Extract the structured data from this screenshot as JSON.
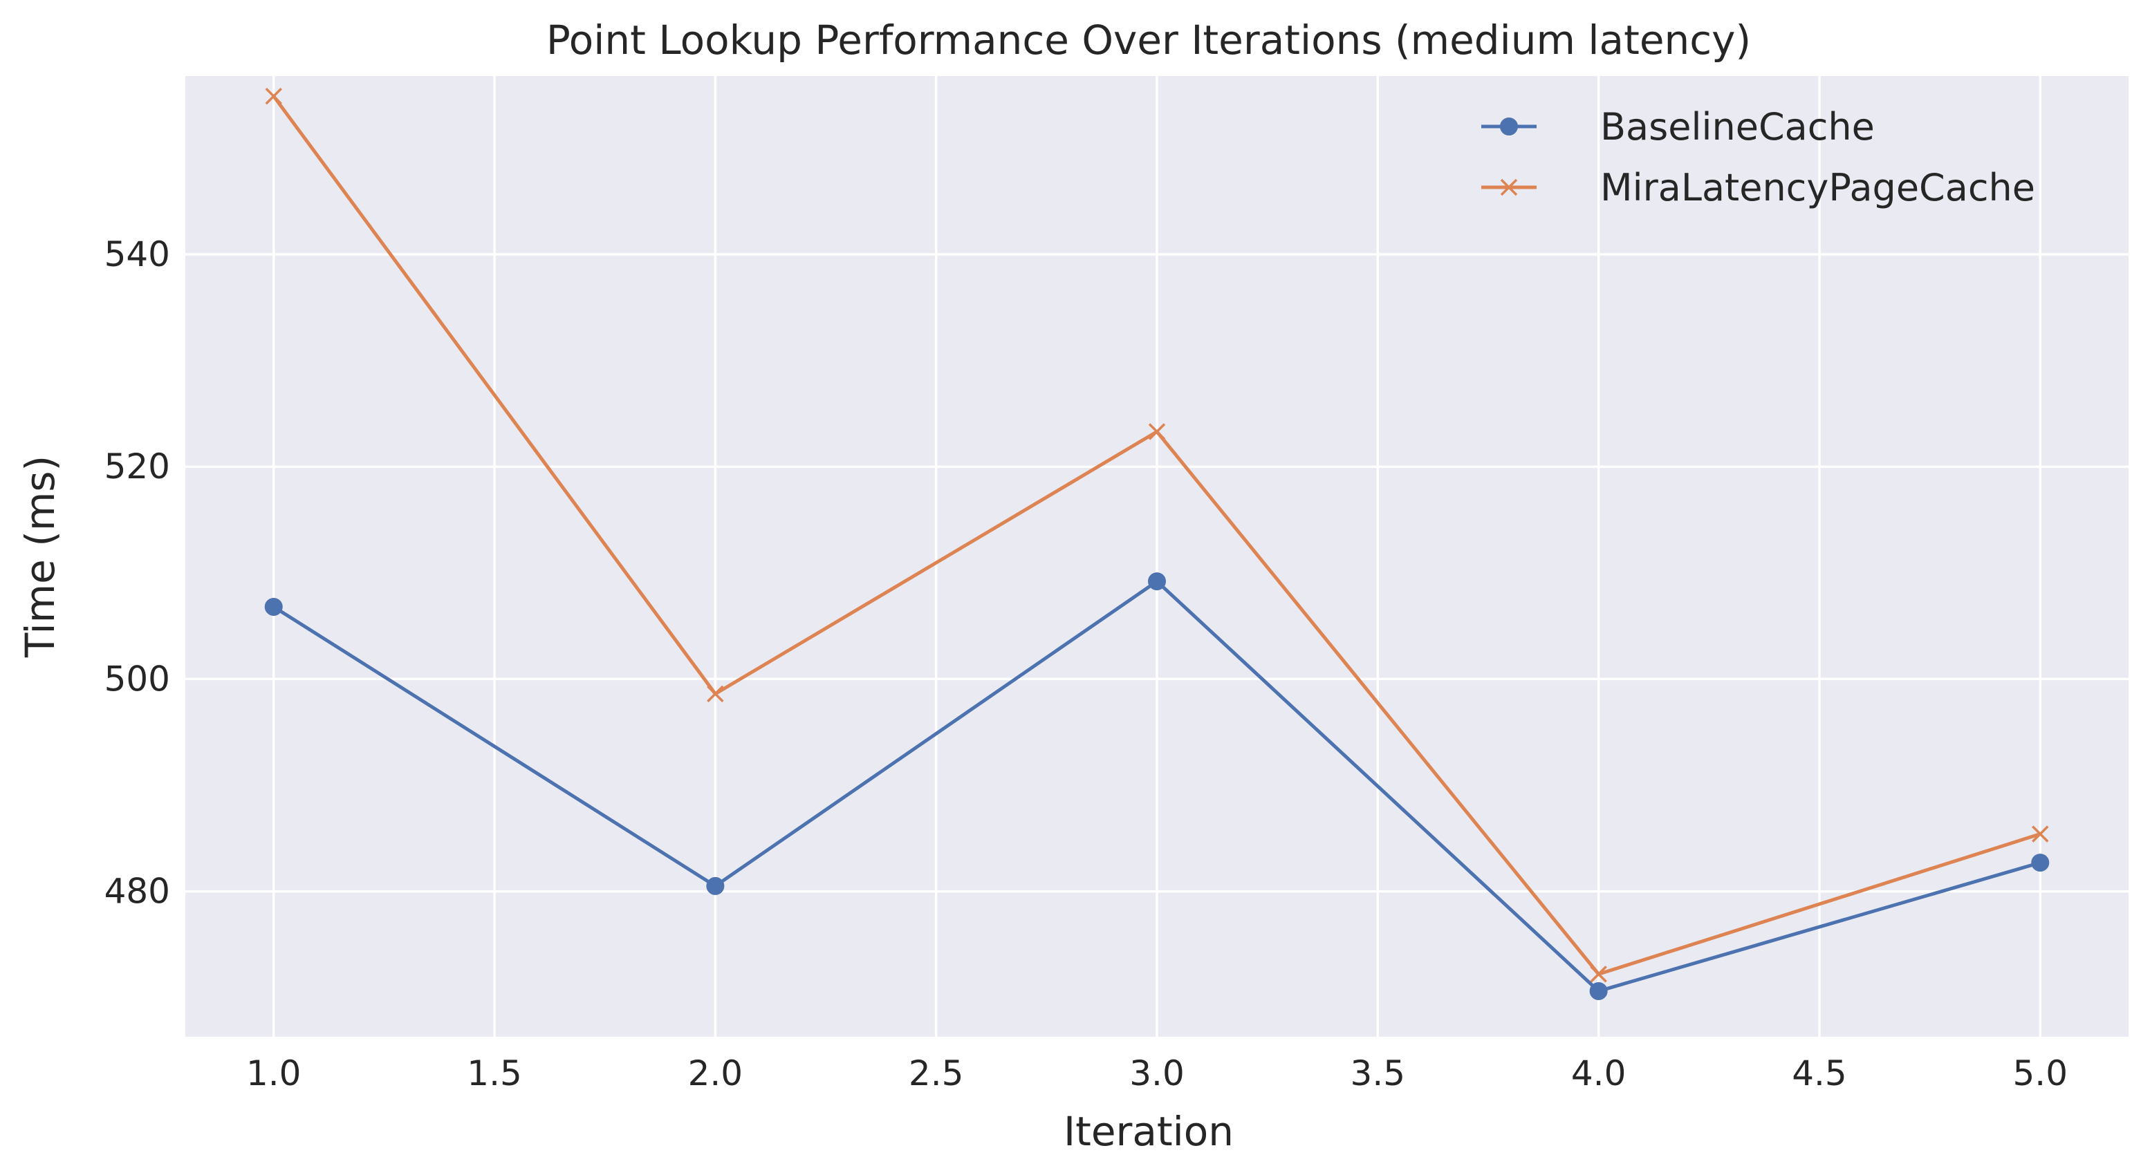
{
  "chart_data": {
    "type": "line",
    "title": "Point Lookup Performance Over Iterations (medium latency)",
    "xlabel": "Iteration",
    "ylabel": "Time (ms)",
    "x": [
      1.0,
      2.0,
      3.0,
      4.0,
      5.0
    ],
    "xlim": [
      0.8,
      5.2
    ],
    "ylim": [
      466.3,
      556.8
    ],
    "xticks": [
      1.0,
      1.5,
      2.0,
      2.5,
      3.0,
      3.5,
      4.0,
      4.5,
      5.0
    ],
    "xtick_labels": [
      "1.0",
      "1.5",
      "2.0",
      "2.5",
      "3.0",
      "3.5",
      "4.0",
      "4.5",
      "5.0"
    ],
    "yticks": [
      480,
      500,
      520,
      540
    ],
    "ytick_labels": [
      "480",
      "500",
      "520",
      "540"
    ],
    "grid": true,
    "legend_position": "top-right",
    "background_color": "#eaeaf2",
    "series": [
      {
        "name": "BaselineCache",
        "values": [
          506.8,
          480.5,
          509.2,
          470.6,
          482.7
        ],
        "color": "#4c72b0",
        "marker": "circle"
      },
      {
        "name": "MiraLatencyPageCache",
        "values": [
          554.9,
          498.6,
          523.3,
          472.2,
          485.4
        ],
        "color": "#dd8452",
        "marker": "x"
      }
    ]
  }
}
